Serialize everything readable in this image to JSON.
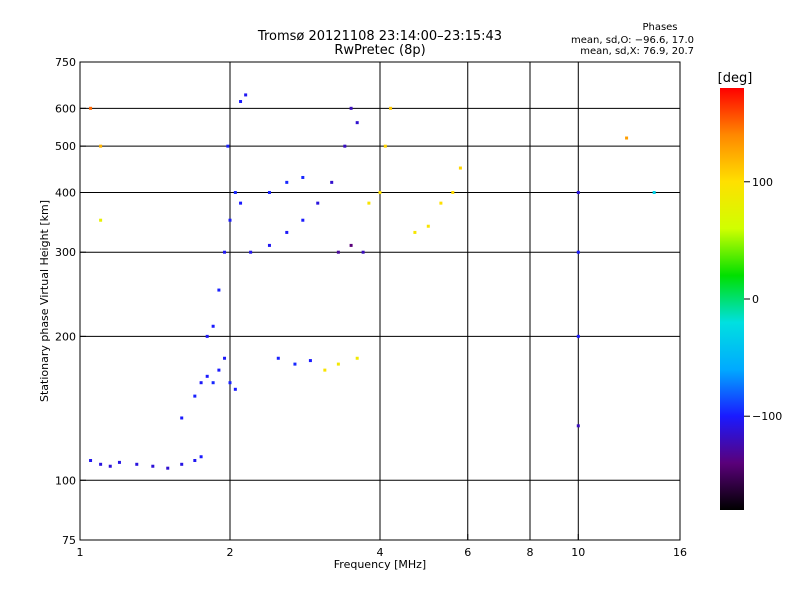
{
  "chart_data": {
    "type": "scatter",
    "title": "Tromsø 20121108 23:14:00–23:15:43",
    "subtitle": "RwPretec (8p)",
    "xlabel": "Frequency [MHz]",
    "ylabel": "Stationary phase Virtual Height [km]",
    "x_scale": "log",
    "y_scale": "log",
    "xlim": [
      1,
      16
    ],
    "ylim": [
      75,
      750
    ],
    "x_ticks": [
      1,
      2,
      4,
      6,
      8,
      10,
      16
    ],
    "x_tick_labels": [
      "1",
      "2",
      "4",
      "6",
      "8",
      "10",
      "16"
    ],
    "y_ticks": [
      75,
      100,
      200,
      300,
      400,
      500,
      600,
      750
    ],
    "y_tick_labels": [
      "75",
      "100",
      "200",
      "300",
      "400",
      "500",
      "600",
      "750"
    ],
    "x_gridlines": [
      2,
      4,
      6,
      8,
      10
    ],
    "y_gridlines": [
      100,
      200,
      300,
      400,
      500,
      600
    ],
    "grid": true,
    "stats": {
      "heading": "Phases",
      "line_o": "mean, sd,O: −96.6, 17.0",
      "line_x": "mean, sd,X:  76.9, 20.7"
    },
    "colorbar": {
      "label": "[deg]",
      "min": -180,
      "max": 180,
      "ticks": [
        100,
        0,
        -100
      ],
      "tick_labels": [
        "100",
        "0",
        "−100"
      ],
      "colors": [
        "#000000",
        "#5a007a",
        "#1a1aff",
        "#00aaff",
        "#00e0e0",
        "#00e000",
        "#d0ff00",
        "#ffe000",
        "#ff8800",
        "#ff0000"
      ]
    },
    "series": [
      {
        "values": [
          [
            1.05,
            110,
            -105
          ],
          [
            1.1,
            108,
            -110
          ],
          [
            1.15,
            107,
            -112
          ],
          [
            1.2,
            109,
            -108
          ],
          [
            1.3,
            108,
            -110
          ],
          [
            1.4,
            107,
            -112
          ],
          [
            1.5,
            106,
            -114
          ],
          [
            1.6,
            108,
            -108
          ],
          [
            1.7,
            110,
            -104
          ],
          [
            1.75,
            112,
            -100
          ],
          [
            1.6,
            135,
            -100
          ],
          [
            1.7,
            150,
            -98
          ],
          [
            1.75,
            160,
            -102
          ],
          [
            1.8,
            165,
            -100
          ],
          [
            1.85,
            160,
            -96
          ],
          [
            1.9,
            170,
            -100
          ],
          [
            1.95,
            180,
            -102
          ],
          [
            2.0,
            160,
            -98
          ],
          [
            2.05,
            155,
            -100
          ],
          [
            1.8,
            200,
            -102
          ],
          [
            1.85,
            210,
            -100
          ],
          [
            1.9,
            250,
            -98
          ],
          [
            1.95,
            300,
            -104
          ],
          [
            2.0,
            350,
            -100
          ],
          [
            2.05,
            400,
            -96
          ],
          [
            2.1,
            380,
            -100
          ],
          [
            1.98,
            500,
            -98
          ],
          [
            2.1,
            620,
            -100
          ],
          [
            2.15,
            640,
            -104
          ],
          [
            2.2,
            300,
            -106
          ],
          [
            2.4,
            310,
            -104
          ],
          [
            2.6,
            330,
            -102
          ],
          [
            2.8,
            350,
            -100
          ],
          [
            3.0,
            380,
            -110
          ],
          [
            3.2,
            420,
            -115
          ],
          [
            3.4,
            500,
            -118
          ],
          [
            3.5,
            600,
            -120
          ],
          [
            3.6,
            560,
            -114
          ],
          [
            2.4,
            400,
            -98
          ],
          [
            2.6,
            420,
            -96
          ],
          [
            2.8,
            430,
            -96
          ],
          [
            2.5,
            180,
            -98
          ],
          [
            2.7,
            175,
            -96
          ],
          [
            2.9,
            178,
            -100
          ],
          [
            3.3,
            300,
            -130
          ],
          [
            3.5,
            310,
            -140
          ],
          [
            3.7,
            300,
            -120
          ],
          [
            3.8,
            380,
            95
          ],
          [
            4.0,
            400,
            100
          ],
          [
            4.2,
            600,
            110
          ],
          [
            4.1,
            500,
            105
          ],
          [
            4.7,
            330,
            92
          ],
          [
            5.0,
            340,
            95
          ],
          [
            5.3,
            380,
            100
          ],
          [
            5.6,
            400,
            102
          ],
          [
            5.8,
            450,
            105
          ],
          [
            3.1,
            170,
            95
          ],
          [
            3.3,
            175,
            90
          ],
          [
            3.6,
            180,
            88
          ],
          [
            10.0,
            400,
            -110
          ],
          [
            10.0,
            300,
            -100
          ],
          [
            10.0,
            200,
            -100
          ],
          [
            10.0,
            130,
            -120
          ],
          [
            1.05,
            600,
            150
          ],
          [
            1.1,
            500,
            120
          ],
          [
            1.1,
            350,
            80
          ],
          [
            12.5,
            520,
            130
          ],
          [
            14.2,
            400,
            -30
          ]
        ]
      }
    ]
  }
}
